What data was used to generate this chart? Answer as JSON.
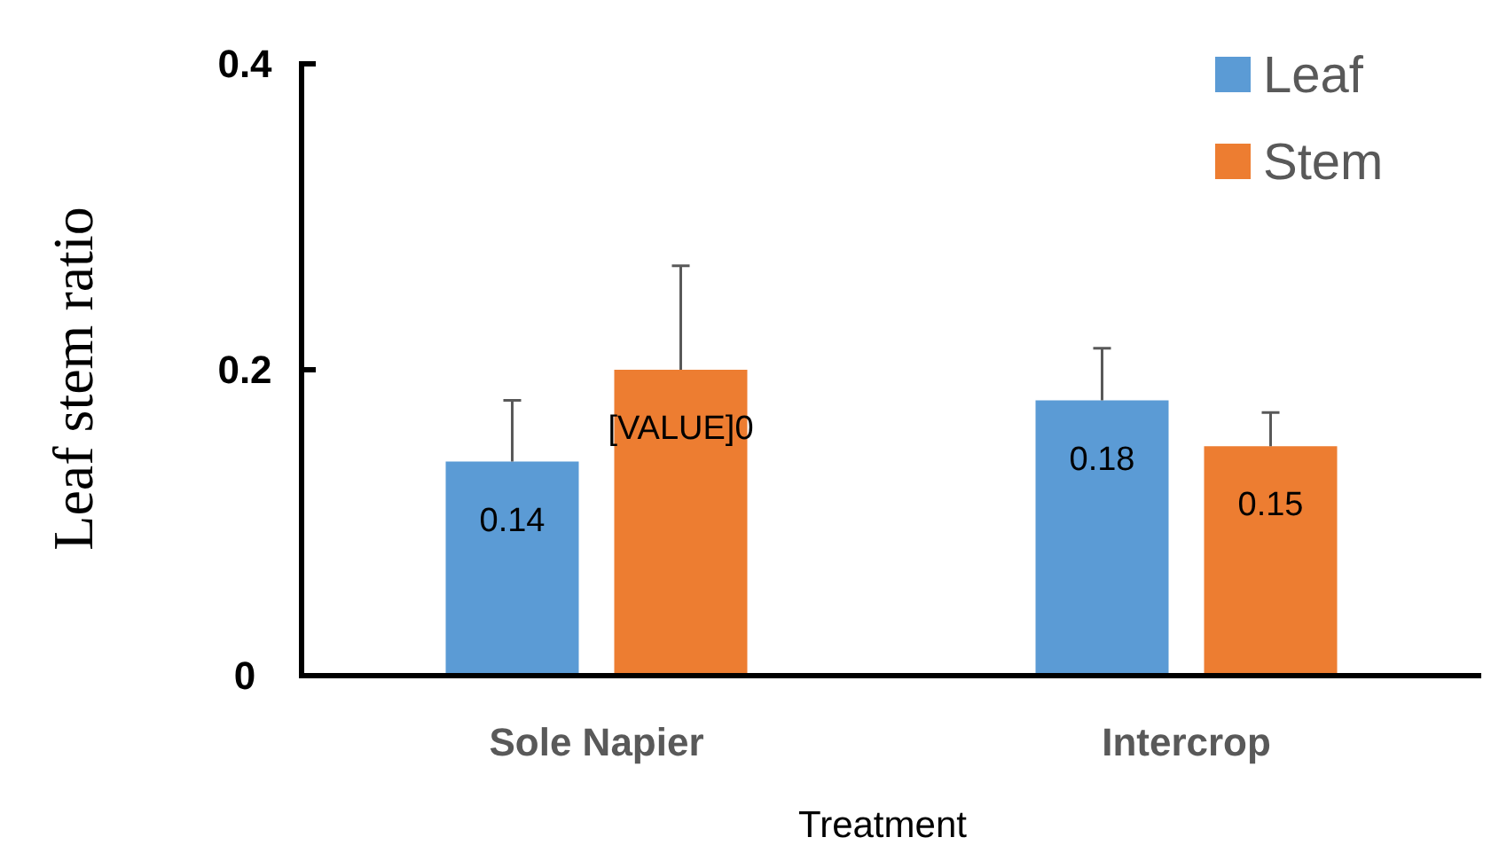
{
  "chart_data": {
    "type": "bar",
    "xlabel": "Treatment",
    "ylabel": "Leaf stem ratio",
    "categories": [
      "Sole Napier",
      "Intercrop"
    ],
    "series": [
      {
        "name": "Leaf",
        "color": "#5b9bd5",
        "values": [
          0.14,
          0.18
        ],
        "errors": [
          [
            0.14,
            0.18
          ],
          [
            0.18,
            0.214
          ]
        ],
        "value_labels": [
          "0.14",
          "0.18"
        ]
      },
      {
        "name": "Stem",
        "color": "#ed7d31",
        "values": [
          0.2,
          0.15
        ],
        "errors": [
          [
            0.2,
            0.268
          ],
          [
            0.15,
            0.172
          ]
        ],
        "value_labels": [
          "[VALUE]0",
          "0.15"
        ]
      }
    ],
    "ylim": [
      0,
      0.4
    ],
    "yticks": [
      0,
      0.2,
      0.4
    ],
    "grid": false,
    "legend": "top right"
  }
}
